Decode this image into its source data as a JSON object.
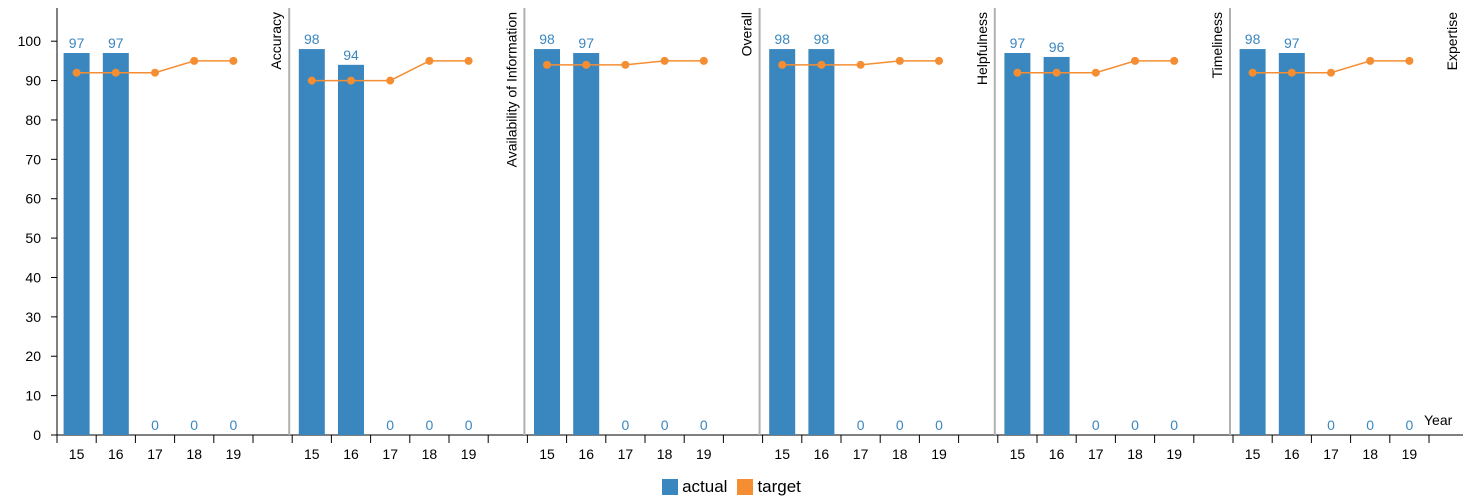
{
  "chart_data": {
    "type": "bar",
    "xlabel": "Year",
    "ylim": [
      0,
      105
    ],
    "y_ticks": [
      0,
      10,
      20,
      30,
      40,
      50,
      60,
      70,
      80,
      90,
      100
    ],
    "categories": [
      "15",
      "16",
      "17",
      "18",
      "19"
    ],
    "legend": {
      "position": "bottom-center",
      "items": [
        "actual",
        "target"
      ]
    },
    "colors": {
      "actual": "#3a87bf",
      "target": "#f58d32"
    },
    "facets": [
      {
        "label": "Accuracy",
        "actual": [
          97,
          97,
          0,
          0,
          0
        ],
        "target": [
          92,
          92,
          92,
          95,
          95
        ]
      },
      {
        "label": "Availability of Information",
        "actual": [
          98,
          94,
          0,
          0,
          0
        ],
        "target": [
          90,
          90,
          90,
          95,
          95
        ]
      },
      {
        "label": "Overall",
        "actual": [
          98,
          97,
          0,
          0,
          0
        ],
        "target": [
          94,
          94,
          94,
          95,
          95
        ]
      },
      {
        "label": "Helpfulness",
        "actual": [
          98,
          98,
          0,
          0,
          0
        ],
        "target": [
          94,
          94,
          94,
          95,
          95
        ]
      },
      {
        "label": "Timeliness",
        "actual": [
          97,
          96,
          0,
          0,
          0
        ],
        "target": [
          92,
          92,
          92,
          95,
          95
        ]
      },
      {
        "label": "Expertise",
        "actual": [
          98,
          97,
          0,
          0,
          0
        ],
        "target": [
          92,
          92,
          92,
          95,
          95
        ]
      }
    ]
  }
}
